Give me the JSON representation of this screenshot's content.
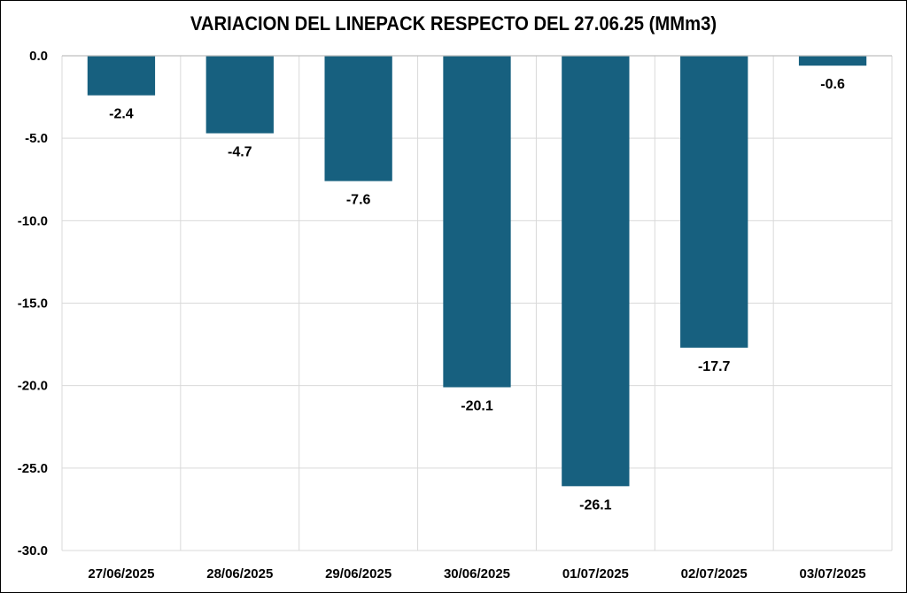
{
  "chart_data": {
    "type": "bar",
    "title": "VARIACION DEL LINEPACK RESPECTO DEL 27.06.25 (MMm3)",
    "xlabel": "",
    "ylabel": "",
    "categories": [
      "27/06/2025",
      "28/06/2025",
      "29/06/2025",
      "30/06/2025",
      "01/07/2025",
      "02/07/2025",
      "03/07/2025"
    ],
    "values": [
      -2.4,
      -4.7,
      -7.6,
      -20.1,
      -26.1,
      -17.7,
      -0.6
    ],
    "value_labels": [
      "-2.4",
      "-4.7",
      "-7.6",
      "-20.1",
      "-26.1",
      "-17.7",
      "-0.6"
    ],
    "ylim": [
      -30,
      0
    ],
    "y_ticks": [
      0,
      -5,
      -10,
      -15,
      -20,
      -25,
      -30
    ],
    "y_tick_labels": [
      "0.0",
      "-5.0",
      "-10.0",
      "-15.0",
      "-20.0",
      "-25.0",
      "-30.0"
    ],
    "grid": true,
    "legend": "none",
    "bar_color": "#17607f",
    "grid_color": "#d9d9d9"
  }
}
